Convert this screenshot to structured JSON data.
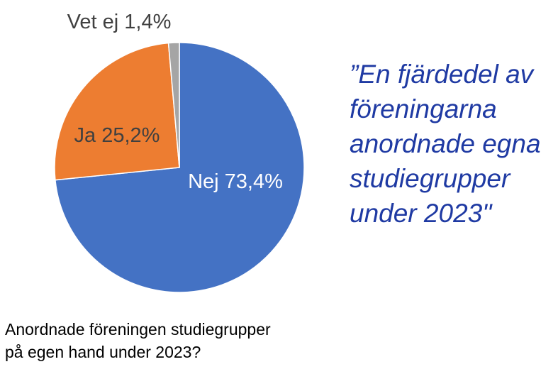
{
  "chart_data": {
    "type": "pie",
    "title": "",
    "slices": [
      {
        "label": "Nej",
        "value": 73.4,
        "value_text": "73,4%",
        "color": "#4472C4",
        "label_color": "#ffffff"
      },
      {
        "label": "Ja",
        "value": 25.2,
        "value_text": "25,2%",
        "color": "#ED7D31",
        "label_color": "#404040"
      },
      {
        "label": "Vet ej",
        "value": 1.4,
        "value_text": "1,4%",
        "color": "#A5A5A5",
        "label_color": "#404040"
      }
    ]
  },
  "quote": {
    "lines": [
      "”En fjärdedel av",
      "föreningarna",
      "anordnade egna",
      "studiegrupper",
      "under 2023\""
    ],
    "color": "#1F3AA3"
  },
  "caption": {
    "lines": [
      "Anordnade föreningen studiegrupper",
      "på egen hand under 2023?"
    ]
  }
}
